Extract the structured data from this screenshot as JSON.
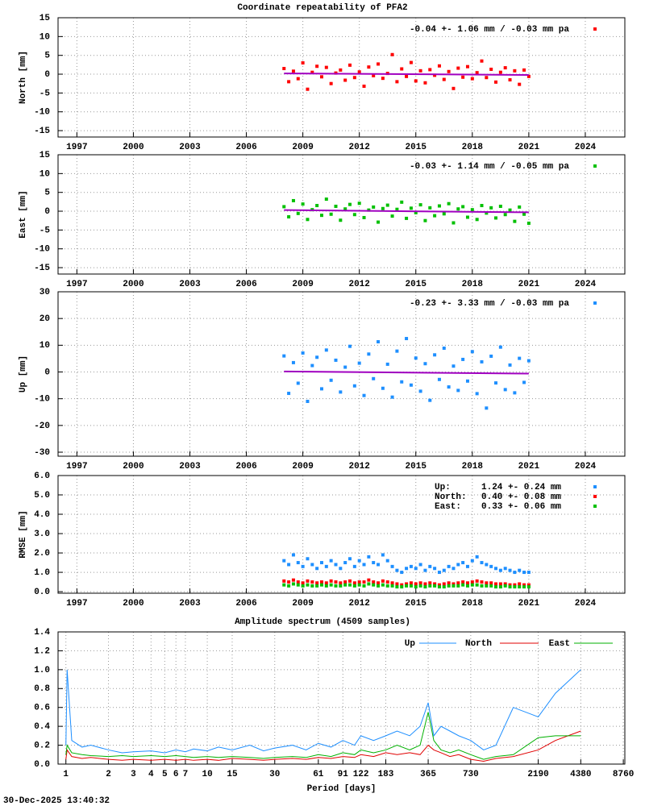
{
  "chart_data": [
    {
      "type": "scatter",
      "title": "Coordinate repeatability of PFA2",
      "ylabel": "North [mm]",
      "xlim": [
        1996,
        2026.1
      ],
      "xticks": [
        1997,
        2000,
        2003,
        2006,
        2009,
        2012,
        2015,
        2018,
        2021,
        2024
      ],
      "ylim": [
        -16.7,
        15
      ],
      "yticks": [
        -15,
        -10,
        -5,
        0,
        5,
        10,
        15
      ],
      "grid": true,
      "x": [
        2008,
        2008.25,
        2008.5,
        2008.75,
        2009,
        2009.25,
        2009.5,
        2009.75,
        2010,
        2010.25,
        2010.5,
        2010.75,
        2011,
        2011.25,
        2011.5,
        2011.75,
        2012,
        2012.25,
        2012.5,
        2012.75,
        2013,
        2013.25,
        2013.5,
        2013.75,
        2014,
        2014.25,
        2014.5,
        2014.75,
        2015,
        2015.25,
        2015.5,
        2015.75,
        2016,
        2016.25,
        2016.5,
        2016.75,
        2017,
        2017.25,
        2017.5,
        2017.75,
        2018,
        2018.25,
        2018.5,
        2018.75,
        2019,
        2019.25,
        2019.5,
        2019.75,
        2020,
        2020.25,
        2020.5,
        2020.75,
        2021
      ],
      "series": [
        {
          "name": "-0.04 +- 1.06 mm / -0.03 mm pa",
          "color": "#ff0000",
          "values": [
            1.5,
            -2,
            0.8,
            -1.2,
            3,
            -4,
            0.5,
            2.1,
            -0.7,
            1.8,
            -2.5,
            0.3,
            1.1,
            -1.6,
            2.4,
            -0.9,
            0.6,
            -3.2,
            1.9,
            -0.4,
            2.7,
            -1.1,
            0.2,
            5.2,
            -2,
            1.4,
            -0.6,
            3.1,
            -1.8,
            0.9,
            -2.3,
            1.2,
            -0.3,
            2.2,
            -1.4,
            0.7,
            -3.8,
            1.6,
            -0.8,
            2,
            -1.2,
            0.4,
            3.5,
            -0.9,
            1.3,
            -2.1,
            0.5,
            1.7,
            -1.5,
            0.9,
            -2.7,
            1.1,
            -0.6
          ]
        }
      ],
      "trend": {
        "color": "#a000c0",
        "x": [
          2008,
          2021
        ],
        "values": [
          0.2,
          -0.2
        ]
      }
    },
    {
      "type": "scatter",
      "ylabel": "East [mm]",
      "xlim": [
        1996,
        2026.1
      ],
      "xticks": [
        1997,
        2000,
        2003,
        2006,
        2009,
        2012,
        2015,
        2018,
        2021,
        2024
      ],
      "ylim": [
        -16.7,
        15
      ],
      "yticks": [
        -15,
        -10,
        -5,
        0,
        5,
        10,
        15
      ],
      "grid": true,
      "x": [
        2008,
        2008.25,
        2008.5,
        2008.75,
        2009,
        2009.25,
        2009.5,
        2009.75,
        2010,
        2010.25,
        2010.5,
        2010.75,
        2011,
        2011.25,
        2011.5,
        2011.75,
        2012,
        2012.25,
        2012.5,
        2012.75,
        2013,
        2013.25,
        2013.5,
        2013.75,
        2014,
        2014.25,
        2014.5,
        2014.75,
        2015,
        2015.25,
        2015.5,
        2015.75,
        2016,
        2016.25,
        2016.5,
        2016.75,
        2017,
        2017.25,
        2017.5,
        2017.75,
        2018,
        2018.25,
        2018.5,
        2018.75,
        2019,
        2019.25,
        2019.5,
        2019.75,
        2020,
        2020.25,
        2020.5,
        2020.75,
        2021
      ],
      "series": [
        {
          "name": "-0.03 +- 1.14 mm / -0.05 mm pa",
          "color": "#00c000",
          "values": [
            1.2,
            -1.5,
            2.8,
            -0.6,
            1.9,
            -2.2,
            0.4,
            1.5,
            -1.1,
            3.2,
            -0.8,
            1.3,
            -2.4,
            0.6,
            1.8,
            -0.9,
            2.1,
            -1.7,
            0.3,
            1.1,
            -2.9,
            0.7,
            1.6,
            -1.3,
            0.5,
            2.4,
            -1.9,
            0.8,
            -0.4,
            1.7,
            -2.5,
            0.9,
            -1.2,
            1.4,
            -0.7,
            2,
            -3.1,
            0.6,
            1.2,
            -1.6,
            0.4,
            -2.2,
            1.5,
            -0.5,
            0.9,
            -1.8,
            1.3,
            -0.9,
            0.3,
            -2.7,
            1.1,
            -0.8,
            -3.2
          ]
        }
      ],
      "trend": {
        "color": "#a000c0",
        "x": [
          2008,
          2021
        ],
        "values": [
          0.3,
          -0.3
        ]
      }
    },
    {
      "type": "scatter",
      "ylabel": "Up [mm]",
      "xlim": [
        1996,
        2026.1
      ],
      "xticks": [
        1997,
        2000,
        2003,
        2006,
        2009,
        2012,
        2015,
        2018,
        2021,
        2024
      ],
      "ylim": [
        -31.5,
        30
      ],
      "yticks": [
        -30,
        -20,
        -10,
        0,
        10,
        20,
        30
      ],
      "grid": true,
      "x": [
        2008,
        2008.25,
        2008.5,
        2008.75,
        2009,
        2009.25,
        2009.5,
        2009.75,
        2010,
        2010.25,
        2010.5,
        2010.75,
        2011,
        2011.25,
        2011.5,
        2011.75,
        2012,
        2012.25,
        2012.5,
        2012.75,
        2013,
        2013.25,
        2013.5,
        2013.75,
        2014,
        2014.25,
        2014.5,
        2014.75,
        2015,
        2015.25,
        2015.5,
        2015.75,
        2016,
        2016.25,
        2016.5,
        2016.75,
        2017,
        2017.25,
        2017.5,
        2017.75,
        2018,
        2018.25,
        2018.5,
        2018.75,
        2019,
        2019.25,
        2019.5,
        2019.75,
        2020,
        2020.25,
        2020.5,
        2020.75,
        2021
      ],
      "series": [
        {
          "name": "-0.23 +- 3.33 mm / -0.03 mm pa",
          "color": "#1e8fff",
          "values": [
            6,
            -8,
            3.5,
            -4.2,
            7.1,
            -11,
            2.4,
            5.5,
            -6.3,
            8.2,
            -3.1,
            4.4,
            -7.5,
            1.8,
            9.6,
            -5.2,
            3.3,
            -8.8,
            6.7,
            -2.5,
            11.3,
            -6.1,
            2.9,
            -9.4,
            7.8,
            -3.7,
            12.5,
            -4.9,
            5.2,
            -7.2,
            3.1,
            -10.6,
            6.4,
            -2.8,
            8.9,
            -5.6,
            2.2,
            -6.9,
            4.7,
            -3.4,
            7.6,
            -8.1,
            3.8,
            -13.5,
            5.9,
            -4.1,
            9.3,
            -6.6,
            2.6,
            -7.8,
            5.1,
            -3.9,
            4.2
          ]
        }
      ],
      "trend": {
        "color": "#a000c0",
        "x": [
          2008,
          2021
        ],
        "values": [
          0.2,
          -0.6
        ]
      }
    },
    {
      "type": "scatter",
      "ylabel": "RMSE [mm]",
      "xlim": [
        1996,
        2026.1
      ],
      "xticks": [
        1997,
        2000,
        2003,
        2006,
        2009,
        2012,
        2015,
        2018,
        2021,
        2024
      ],
      "ylim": [
        -0.08,
        6
      ],
      "yticks": [
        {
          "value": 0,
          "label": "0.0"
        },
        {
          "value": 1,
          "label": "1.0"
        },
        {
          "value": 2,
          "label": "2.0"
        },
        {
          "value": 3,
          "label": "3.0"
        },
        {
          "value": 4,
          "label": "4.0"
        },
        {
          "value": 5,
          "label": "5.0"
        },
        {
          "value": 6,
          "label": "6.0"
        }
      ],
      "grid": true,
      "x": [
        2008,
        2008.25,
        2008.5,
        2008.75,
        2009,
        2009.25,
        2009.5,
        2009.75,
        2010,
        2010.25,
        2010.5,
        2010.75,
        2011,
        2011.25,
        2011.5,
        2011.75,
        2012,
        2012.25,
        2012.5,
        2012.75,
        2013,
        2013.25,
        2013.5,
        2013.75,
        2014,
        2014.25,
        2014.5,
        2014.75,
        2015,
        2015.25,
        2015.5,
        2015.75,
        2016,
        2016.25,
        2016.5,
        2016.75,
        2017,
        2017.25,
        2017.5,
        2017.75,
        2018,
        2018.25,
        2018.5,
        2018.75,
        2019,
        2019.25,
        2019.5,
        2019.75,
        2020,
        2020.25,
        2020.5,
        2020.75,
        2021
      ],
      "series": [
        {
          "name": "Up:",
          "stats": "1.24 +- 0.24 mm",
          "color": "#1e8fff",
          "values": [
            1.6,
            1.4,
            1.9,
            1.5,
            1.3,
            1.7,
            1.4,
            1.2,
            1.5,
            1.3,
            1.6,
            1.4,
            1.2,
            1.5,
            1.7,
            1.3,
            1.6,
            1.4,
            1.8,
            1.5,
            1.4,
            1.9,
            1.6,
            1.3,
            1.1,
            1.0,
            1.2,
            1.3,
            1.2,
            1.4,
            1.1,
            1.3,
            1.2,
            1.0,
            1.1,
            1.3,
            1.2,
            1.4,
            1.5,
            1.3,
            1.6,
            1.8,
            1.5,
            1.4,
            1.3,
            1.2,
            1.1,
            1.2,
            1.1,
            1.0,
            1.1,
            1.0,
            1.0
          ]
        },
        {
          "name": "North:",
          "stats": "0.40 +- 0.08 mm",
          "color": "#ff0000",
          "values": [
            0.55,
            0.5,
            0.6,
            0.5,
            0.45,
            0.55,
            0.5,
            0.45,
            0.5,
            0.45,
            0.55,
            0.5,
            0.45,
            0.5,
            0.55,
            0.45,
            0.5,
            0.5,
            0.6,
            0.5,
            0.45,
            0.55,
            0.5,
            0.45,
            0.4,
            0.35,
            0.4,
            0.45,
            0.4,
            0.45,
            0.4,
            0.45,
            0.4,
            0.35,
            0.4,
            0.45,
            0.4,
            0.45,
            0.5,
            0.45,
            0.5,
            0.55,
            0.5,
            0.45,
            0.45,
            0.4,
            0.4,
            0.4,
            0.35,
            0.35,
            0.4,
            0.35,
            0.35
          ]
        },
        {
          "name": "East:",
          "stats": "0.33 +- 0.06 mm",
          "color": "#00c000",
          "values": [
            0.35,
            0.3,
            0.4,
            0.35,
            0.3,
            0.35,
            0.3,
            0.3,
            0.35,
            0.3,
            0.35,
            0.3,
            0.3,
            0.35,
            0.35,
            0.3,
            0.35,
            0.3,
            0.4,
            0.35,
            0.3,
            0.35,
            0.3,
            0.3,
            0.25,
            0.25,
            0.3,
            0.3,
            0.25,
            0.3,
            0.25,
            0.3,
            0.3,
            0.25,
            0.25,
            0.3,
            0.3,
            0.3,
            0.35,
            0.3,
            0.35,
            0.35,
            0.3,
            0.3,
            0.3,
            0.25,
            0.25,
            0.3,
            0.25,
            0.25,
            0.25,
            0.25,
            0.25
          ]
        }
      ]
    },
    {
      "type": "line",
      "title": "Amplitude spectrum (4509 samples)",
      "xlabel": "Period [days]",
      "xlog": true,
      "xlim": [
        0.88,
        8980
      ],
      "xticks": [
        1,
        2,
        3,
        4,
        5,
        6,
        7,
        10,
        15,
        30,
        61,
        91,
        122,
        183,
        365,
        730,
        2190,
        4380,
        8760
      ],
      "ylim": [
        0,
        1.4
      ],
      "yticks": [
        {
          "value": 0,
          "label": "0.0"
        },
        0.2,
        0.4,
        0.6,
        0.8,
        {
          "value": 1,
          "label": "1.0"
        },
        1.2,
        1.4
      ],
      "grid": true,
      "x": [
        1,
        1.02,
        1.1,
        1.3,
        1.5,
        2,
        2.5,
        3,
        4,
        5,
        6,
        7,
        8,
        10,
        12,
        15,
        20,
        25,
        30,
        40,
        50,
        61,
        75,
        91,
        110,
        122,
        150,
        183,
        220,
        270,
        320,
        365,
        400,
        450,
        520,
        600,
        730,
        900,
        1100,
        1460,
        2190,
        2900,
        4380
      ],
      "series": [
        {
          "name": "Up",
          "color": "#1e8fff",
          "values": [
            0.2,
            1.0,
            0.25,
            0.18,
            0.2,
            0.15,
            0.12,
            0.13,
            0.14,
            0.12,
            0.15,
            0.13,
            0.16,
            0.14,
            0.18,
            0.15,
            0.2,
            0.14,
            0.17,
            0.2,
            0.15,
            0.22,
            0.18,
            0.25,
            0.2,
            0.3,
            0.25,
            0.3,
            0.35,
            0.3,
            0.4,
            0.65,
            0.3,
            0.4,
            0.35,
            0.3,
            0.25,
            0.15,
            0.2,
            0.6,
            0.5,
            0.75,
            1.0
          ]
        },
        {
          "name": "North",
          "color": "#e00000",
          "values": [
            0.05,
            0.15,
            0.08,
            0.06,
            0.07,
            0.05,
            0.04,
            0.05,
            0.04,
            0.05,
            0.04,
            0.05,
            0.04,
            0.05,
            0.04,
            0.06,
            0.05,
            0.04,
            0.05,
            0.06,
            0.05,
            0.07,
            0.06,
            0.08,
            0.07,
            0.1,
            0.08,
            0.12,
            0.1,
            0.12,
            0.1,
            0.2,
            0.15,
            0.12,
            0.08,
            0.1,
            0.05,
            0.03,
            0.06,
            0.08,
            0.15,
            0.25,
            0.35
          ]
        },
        {
          "name": "East",
          "color": "#00b000",
          "values": [
            0.1,
            0.2,
            0.12,
            0.1,
            0.09,
            0.08,
            0.09,
            0.08,
            0.09,
            0.08,
            0.09,
            0.08,
            0.07,
            0.08,
            0.07,
            0.08,
            0.07,
            0.06,
            0.07,
            0.08,
            0.07,
            0.1,
            0.08,
            0.12,
            0.1,
            0.15,
            0.12,
            0.15,
            0.2,
            0.15,
            0.2,
            0.55,
            0.25,
            0.15,
            0.12,
            0.15,
            0.1,
            0.05,
            0.08,
            0.1,
            0.28,
            0.3,
            0.3
          ]
        }
      ]
    }
  ],
  "footer": "30-Dec-2025 13:40:32"
}
